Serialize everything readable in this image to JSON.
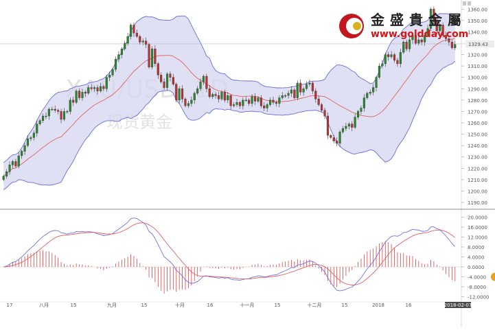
{
  "chart_data": [
    {
      "type": "candlestick",
      "symbol_watermark": "XAU/USD, 1D",
      "name_watermark": "现货黄金",
      "logo": {
        "text": "金盛貴金屬",
        "url": "www.goldday.com"
      },
      "last_price": "1329.43",
      "date_labels": [
        "17",
        "八月",
        "15",
        "九月",
        "15",
        "十月",
        "16",
        "十一月",
        "15",
        "十二月",
        "15",
        "2018",
        "16"
      ],
      "last_date": "2018-02-07",
      "y_ticks": [
        "1360.00",
        "1350.00",
        "1340.00",
        "1330.00",
        "1320.00",
        "1310.00",
        "1300.00",
        "1290.00",
        "1280.00",
        "1270.00",
        "1260.00",
        "1250.00",
        "1240.00",
        "1230.00",
        "1220.00",
        "1210.00",
        "1200.00",
        "1190.00"
      ],
      "ylim": [
        1187,
        1365
      ],
      "close": [
        1213,
        1217,
        1223,
        1226,
        1222,
        1231,
        1235,
        1240,
        1246,
        1247,
        1251,
        1259,
        1262,
        1266,
        1266,
        1272,
        1272,
        1271,
        1270,
        1263,
        1270,
        1270,
        1280,
        1278,
        1288,
        1282,
        1287,
        1286,
        1291,
        1290,
        1291,
        1288,
        1292,
        1290,
        1300,
        1302,
        1307,
        1316,
        1320,
        1325,
        1330,
        1336,
        1346,
        1339,
        1336,
        1331,
        1332,
        1329,
        1309,
        1325,
        1312,
        1302,
        1296,
        1291,
        1303,
        1300,
        1294,
        1280,
        1290,
        1281,
        1275,
        1277,
        1280,
        1286,
        1290,
        1296,
        1301,
        1290,
        1283,
        1285,
        1284,
        1281,
        1287,
        1280,
        1284,
        1275,
        1276,
        1278,
        1275,
        1280,
        1280,
        1277,
        1283,
        1279,
        1282,
        1275,
        1273,
        1276,
        1280,
        1278,
        1277,
        1282,
        1284,
        1284,
        1286,
        1289,
        1282,
        1295,
        1287,
        1290,
        1294,
        1295,
        1288,
        1281,
        1276,
        1271,
        1266,
        1249,
        1247,
        1244,
        1242,
        1252,
        1255,
        1257,
        1259,
        1256,
        1265,
        1270,
        1273,
        1282,
        1286,
        1287,
        1291,
        1300,
        1310,
        1312,
        1320,
        1318,
        1320,
        1315,
        1312,
        1322,
        1331,
        1325,
        1333,
        1337,
        1330,
        1333,
        1331,
        1337,
        1343,
        1360,
        1349,
        1341,
        1346,
        1337,
        1334,
        1331,
        1326,
        1329
      ],
      "macd_ticks": [
        "20.0000",
        "16.0000",
        "12.0000",
        "8.0000",
        "4.0000",
        "0.0000",
        "-4.0000",
        "-8.0000",
        "-12.0000"
      ],
      "macd_lim": [
        -13.5,
        21.5
      ]
    }
  ],
  "colors": {
    "up": "#2a8a2a",
    "down": "#c03030",
    "band_fill": "#d6d6f0",
    "band_line": "#6a6ad8",
    "mid_line": "#e06060",
    "macd_fast": "#7070e0",
    "macd_slow": "#e06060",
    "hist": "#e04040",
    "logo_red": "#c0181e",
    "logo_text": "#222222",
    "logo_url": "#d01818"
  }
}
